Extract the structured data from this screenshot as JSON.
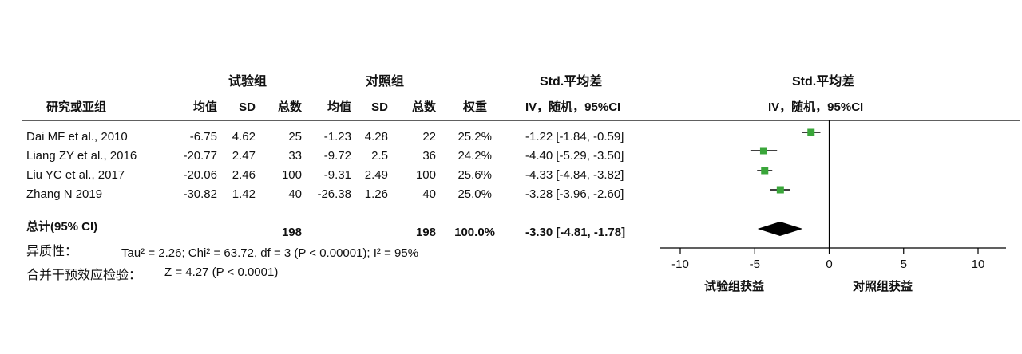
{
  "headers": {
    "group_exp": "试验组",
    "group_ctrl": "对照组",
    "smd_table": "Std.平均差",
    "smd_plot": "Std.平均差",
    "study": "研究或亚组",
    "mean_exp": "均值",
    "sd_exp": "SD",
    "total_exp": "总数",
    "mean_ctrl": "均值",
    "sd_ctrl": "SD",
    "total_ctrl": "总数",
    "weight": "权重",
    "method_table": "IV，随机，95%CI",
    "method_plot": "IV，随机，95%CI"
  },
  "studies": [
    {
      "name": "Dai MF et al., 2010",
      "mean_exp": "-6.75",
      "sd_exp": "4.62",
      "total_exp": "25",
      "mean_ctrl": "-1.23",
      "sd_ctrl": "4.28",
      "total_ctrl": "22",
      "weight": "25.2%",
      "ci_text": "-1.22 [-1.84, -0.59]"
    },
    {
      "name": "Liang ZY et al., 2016",
      "mean_exp": "-20.77",
      "sd_exp": "2.47",
      "total_exp": "33",
      "mean_ctrl": "-9.72",
      "sd_ctrl": "2.5",
      "total_ctrl": "36",
      "weight": "24.2%",
      "ci_text": "-4.40 [-5.29, -3.50]"
    },
    {
      "name": "Liu YC et al., 2017",
      "mean_exp": "-20.06",
      "sd_exp": "2.46",
      "total_exp": "100",
      "mean_ctrl": "-9.31",
      "sd_ctrl": "2.49",
      "total_ctrl": "100",
      "weight": "25.6%",
      "ci_text": "-4.33 [-4.84, -3.82]"
    },
    {
      "name": "Zhang N 2019",
      "mean_exp": "-30.82",
      "sd_exp": "1.42",
      "total_exp": "40",
      "mean_ctrl": "-26.38",
      "sd_ctrl": "1.26",
      "total_ctrl": "40",
      "weight": "25.0%",
      "ci_text": "-3.28 [-3.96, -2.60]"
    }
  ],
  "total": {
    "label": "总计(95% CI)",
    "total_exp": "198",
    "total_ctrl": "198",
    "weight": "100.0%",
    "ci_text": "-3.30 [-4.81, -1.78]"
  },
  "heterogeneity": {
    "label": "异质性：",
    "text": "Tau² = 2.26; Chi² = 63.72, df = 3 (P < 0.00001); I² = 95%"
  },
  "overall_test": {
    "label": "合并干预效应检验：",
    "text": "Z = 4.27 (P < 0.0001)"
  },
  "chart_data": {
    "type": "forest",
    "xlim": [
      -10,
      10
    ],
    "ticks": [
      -10,
      -5,
      0,
      5,
      10
    ],
    "tick_labels": [
      "-10",
      "-5",
      "0",
      "5",
      "10"
    ],
    "left_label": "试验组获益",
    "right_label": "对照组获益",
    "studies": [
      {
        "est": -1.22,
        "lo": -1.84,
        "hi": -0.59,
        "weight": 25.2
      },
      {
        "est": -4.4,
        "lo": -5.29,
        "hi": -3.5,
        "weight": 24.2
      },
      {
        "est": -4.33,
        "lo": -4.84,
        "hi": -3.82,
        "weight": 25.6
      },
      {
        "est": -3.28,
        "lo": -3.96,
        "hi": -2.6,
        "weight": 25.0
      }
    ],
    "overall": {
      "est": -3.3,
      "lo": -4.81,
      "hi": -1.78
    },
    "colors": {
      "marker": "#3aa63a",
      "diamond": "#000000",
      "line": "#000000"
    }
  }
}
